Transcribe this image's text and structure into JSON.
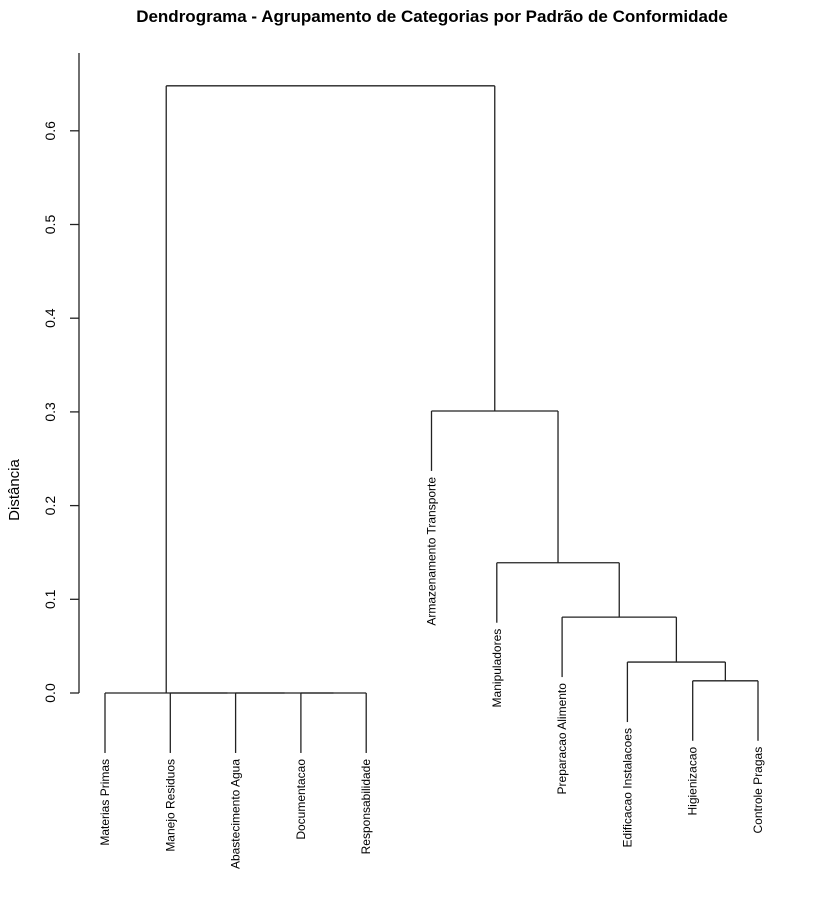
{
  "chart_data": {
    "type": "dendrogram",
    "title": "Dendrograma - Agrupamento de Categorias por Padrão de Conformidade",
    "xlabel": "",
    "ylabel": "Distância",
    "ylim": [
      0,
      0.65
    ],
    "yticks": [
      "0.0",
      "0.1",
      "0.2",
      "0.3",
      "0.4",
      "0.5",
      "0.6"
    ],
    "ytick_values": [
      0,
      0.1,
      0.2,
      0.3,
      0.4,
      0.5,
      0.6
    ],
    "grid": false,
    "line_color": "#222222",
    "leaves": [
      "Materias  Primas",
      "Manejo  Residuos",
      "Abastecimento  Agua",
      "Documentacao",
      "Responsabilidade",
      "Armazenamento  Transporte",
      "Manipuladores",
      "Preparacao  Alimento",
      "Edificacao  Instalacoes",
      "Higienizacao",
      "Controle  Pragas"
    ],
    "tree": {
      "height": 0.648,
      "children": [
        {
          "height": 0.0,
          "children": [
            0,
            {
              "height": 0.0,
              "children": [
                1,
                {
                  "height": 0.0,
                  "children": [
                    2,
                    {
                      "height": 0.0,
                      "children": [
                        3,
                        4
                      ]
                    }
                  ]
                }
              ]
            }
          ]
        },
        {
          "height": 0.301,
          "children": [
            5,
            {
              "height": 0.139,
              "children": [
                6,
                {
                  "height": 0.081,
                  "children": [
                    7,
                    {
                      "height": 0.033,
                      "children": [
                        8,
                        {
                          "height": 0.013,
                          "children": [
                            9,
                            10
                          ]
                        }
                      ]
                    }
                  ]
                }
              ]
            }
          ]
        }
      ]
    }
  }
}
